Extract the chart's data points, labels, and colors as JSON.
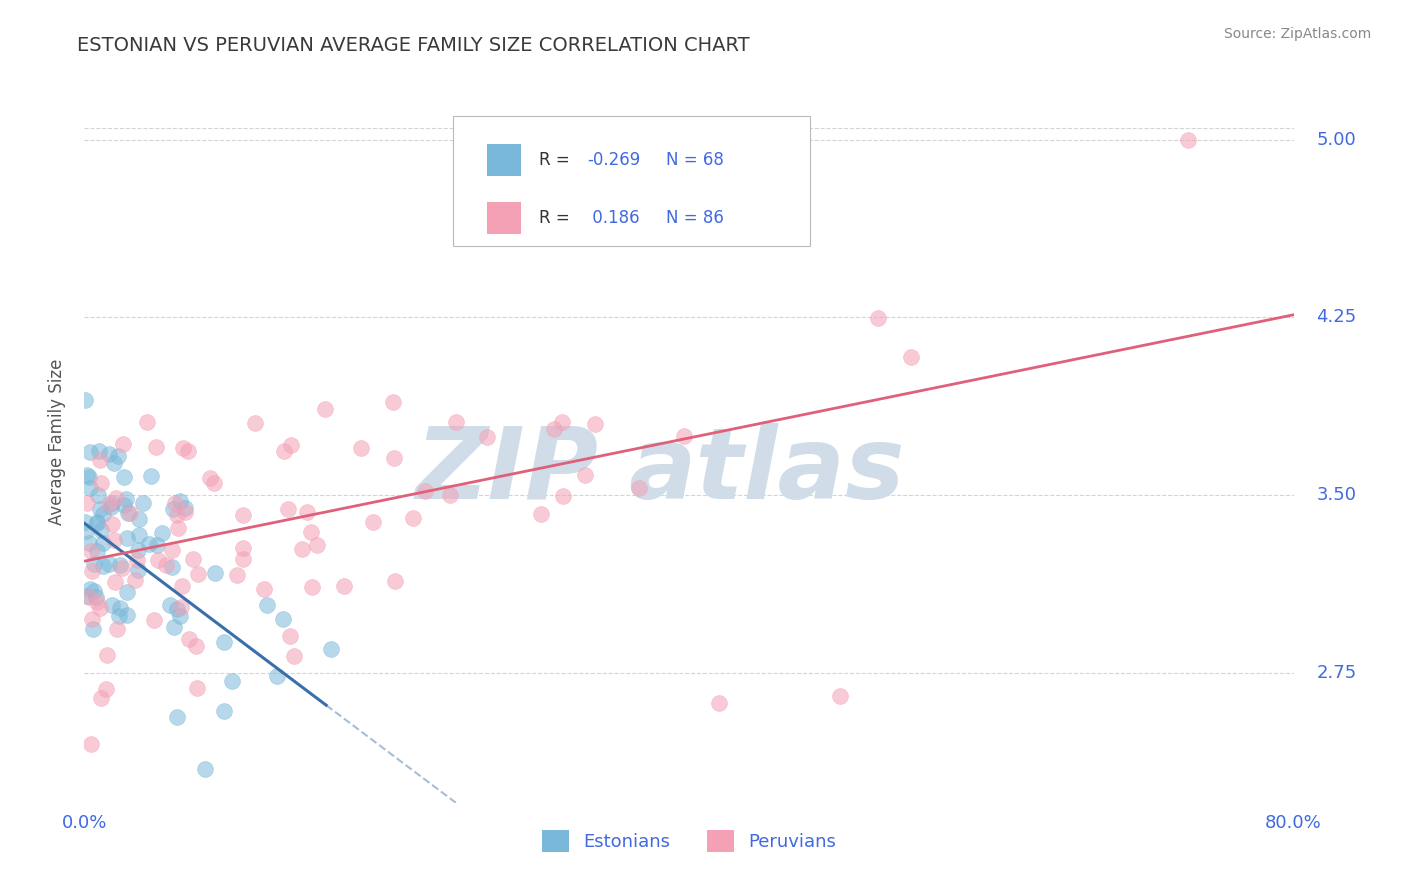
{
  "title": "ESTONIAN VS PERUVIAN AVERAGE FAMILY SIZE CORRELATION CHART",
  "source_text": "Source: ZipAtlas.com",
  "ylabel": "Average Family Size",
  "yticks": [
    2.75,
    3.5,
    4.25,
    5.0
  ],
  "xlim": [
    0.0,
    80.0
  ],
  "ylim": [
    2.2,
    5.25
  ],
  "blue_R": -0.269,
  "blue_N": 68,
  "pink_R": 0.186,
  "pink_N": 86,
  "blue_color": "#7ab8d9",
  "pink_color": "#f4a0b5",
  "blue_line_color": "#3a6faa",
  "pink_line_color": "#e0607a",
  "grid_color": "#b8b8b8",
  "title_color": "#3a3a3a",
  "axis_color": "#4169e1",
  "watermark_color": "#d0dde8",
  "background_color": "#ffffff",
  "blue_intercept": 3.38,
  "blue_slope": -0.048,
  "pink_intercept": 3.22,
  "pink_slope": 0.013,
  "seed": 99
}
